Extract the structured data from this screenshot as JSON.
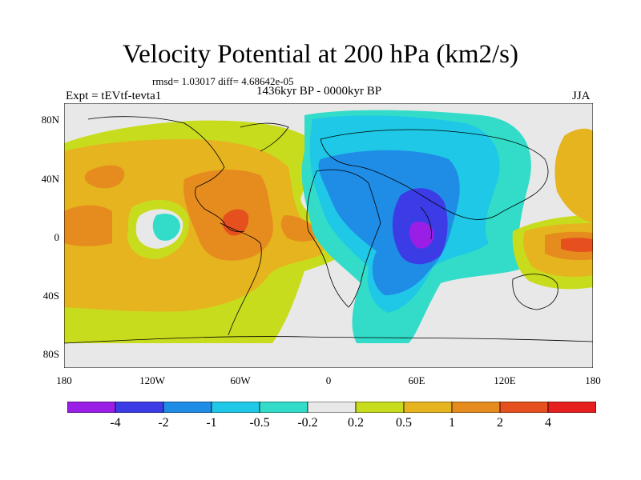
{
  "title": "Velocity Potential at 200 hPa (km2/s)",
  "stats": "rmsd= 1.03017 diff= 4.68642e-05",
  "subtitle": "1436kyr BP - 0000kyr BP",
  "left_label": "Expt = tEVtf-tevta1",
  "right_label": "JJA",
  "lat_labels": [
    "80N",
    "40N",
    "0",
    "40S",
    "80S"
  ],
  "lon_labels": [
    "180",
    "120W",
    "60W",
    "0",
    "60E",
    "120E",
    "180"
  ],
  "colorbar": {
    "levels": [
      "-4",
      "-2",
      "-1",
      "-0.5",
      "-0.2",
      "0.2",
      "0.5",
      "1",
      "2",
      "4"
    ],
    "colors": [
      "#9a1ee6",
      "#3c3ce6",
      "#1f8ce6",
      "#1ec8e6",
      "#32dcc8",
      "#e8e8e8",
      "#c8dc1e",
      "#e6b41e",
      "#e68c1e",
      "#e6501e",
      "#e61e1e"
    ]
  },
  "land_color": "#000000",
  "ocean_background": "#e8e8e8"
}
